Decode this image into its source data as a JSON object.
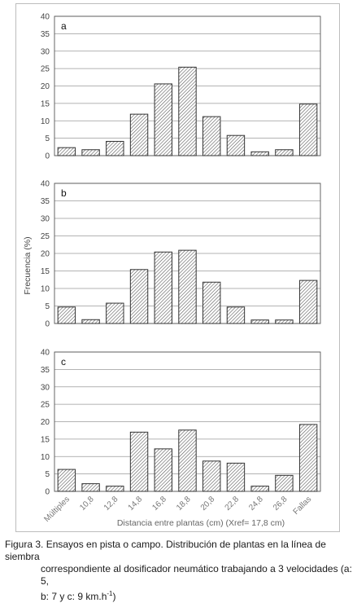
{
  "chart_data": [
    {
      "type": "bar",
      "panel": "a",
      "categories": [
        "Múltiples",
        "10,8",
        "12,8",
        "14,8",
        "16,8",
        "18,8",
        "20,8",
        "22,8",
        "24,8",
        "26,8",
        "Fallas"
      ],
      "values": [
        2.3,
        1.7,
        4.1,
        11.9,
        20.6,
        25.4,
        11.2,
        5.8,
        1.1,
        1.7,
        14.8
      ],
      "ylim": [
        0,
        40
      ],
      "yticks": [
        0,
        5,
        10,
        15,
        20,
        25,
        30,
        35,
        40
      ],
      "grid": true
    },
    {
      "type": "bar",
      "panel": "b",
      "categories": [
        "Múltiples",
        "10,8",
        "12,8",
        "14,8",
        "16,8",
        "18,8",
        "20,8",
        "22,8",
        "24,8",
        "26,8",
        "Fallas"
      ],
      "values": [
        4.7,
        1.1,
        5.8,
        15.4,
        20.4,
        20.9,
        11.8,
        4.7,
        1.0,
        1.0,
        12.3
      ],
      "ylim": [
        0,
        40
      ],
      "yticks": [
        0,
        5,
        10,
        15,
        20,
        25,
        30,
        35,
        40
      ],
      "grid": true
    },
    {
      "type": "bar",
      "panel": "c",
      "categories": [
        "Múltiples",
        "10,8",
        "12,8",
        "14,8",
        "16,8",
        "18,8",
        "20,8",
        "22,8",
        "24,8",
        "26,8",
        "Fallas"
      ],
      "values": [
        6.3,
        2.2,
        1.5,
        17.0,
        12.2,
        17.6,
        8.7,
        8.1,
        1.5,
        4.6,
        19.2
      ],
      "ylim": [
        0,
        40
      ],
      "yticks": [
        0,
        5,
        10,
        15,
        20,
        25,
        30,
        35,
        40
      ],
      "grid": true
    }
  ],
  "axes": {
    "ylabel": "Frecuencia (%)",
    "xlabel": "Distancia entre plantas  (cm) (Xref= 17,8 cm)"
  },
  "caption": {
    "line1": "Figura 3. Ensayos en pista o campo. Distribución de plantas en la línea de siembra",
    "line2a": "correspondiente al dosificador neumático trabajando a 3 velocidades (a: 5,",
    "line2b_pre": "b: 7 y c: 9 km.h",
    "line2b_sup": "-1",
    "line2b_post": ")"
  },
  "colors": {
    "bar_fill": "#ffffff",
    "bar_hatch": "#555555",
    "bar_stroke": "#333333",
    "grid": "#9a9a9a",
    "axis": "#555555",
    "text": "#444444"
  }
}
